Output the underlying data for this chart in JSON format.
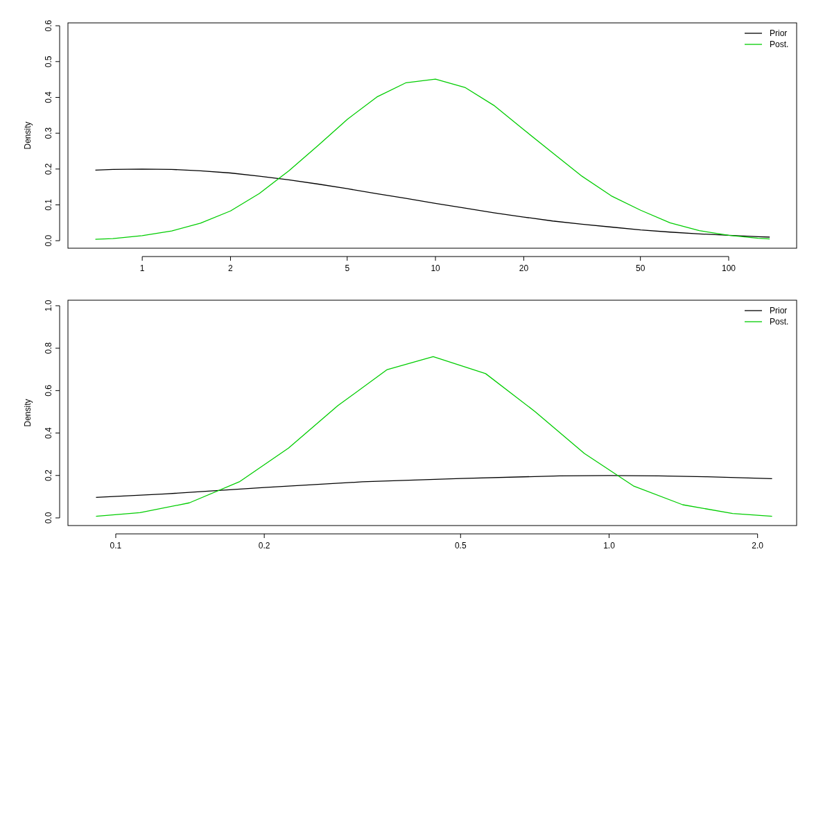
{
  "chart_data": [
    {
      "type": "line",
      "ylabel": "Density",
      "log": "x",
      "legend": "top right",
      "xlim": [
        0.558,
        170.5
      ],
      "ylim": [
        -0.021,
        0.608
      ],
      "xticks": [
        1,
        2,
        5,
        10,
        20,
        50,
        100
      ],
      "yticks": [
        {
          "value": 0,
          "label": "0.0"
        },
        {
          "value": 0.1,
          "label": "0.1"
        },
        {
          "value": 0.2,
          "label": "0.2"
        },
        {
          "value": 0.3,
          "label": "0.3"
        },
        {
          "value": 0.4,
          "label": "0.4"
        },
        {
          "value": 0.5,
          "label": "0.5"
        },
        {
          "value": 0.6,
          "label": "0.6"
        }
      ],
      "series": [
        {
          "name": "Prior",
          "color": "#000000",
          "x": [
            0.692,
            0.794,
            1,
            1.26,
            1.58,
            2.0,
            2.51,
            3.16,
            3.98,
            5.01,
            6.31,
            7.94,
            10,
            12.6,
            15.8,
            20,
            25.1,
            31.6,
            39.8,
            50.1,
            63.1,
            79.4,
            100,
            126,
            138
          ],
          "values": [
            0.197,
            0.199,
            0.2,
            0.199,
            0.195,
            0.189,
            0.18,
            0.17,
            0.158,
            0.145,
            0.131,
            0.118,
            0.104,
            0.091,
            0.078,
            0.066,
            0.055,
            0.046,
            0.038,
            0.03,
            0.024,
            0.019,
            0.015,
            0.011,
            0.01
          ]
        },
        {
          "name": "Post.",
          "color": "#00cd00",
          "x": [
            0.692,
            0.794,
            1,
            1.26,
            1.58,
            2.0,
            2.51,
            3.16,
            3.98,
            5.01,
            6.31,
            7.94,
            10,
            12.6,
            15.8,
            20,
            25.1,
            31.6,
            39.8,
            50.1,
            63.1,
            79.4,
            100,
            126,
            138
          ],
          "values": [
            0.004,
            0.006,
            0.014,
            0.027,
            0.049,
            0.083,
            0.132,
            0.195,
            0.266,
            0.339,
            0.401,
            0.441,
            0.451,
            0.428,
            0.378,
            0.31,
            0.245,
            0.18,
            0.125,
            0.085,
            0.05,
            0.028,
            0.015,
            0.007,
            0.005
          ]
        }
      ]
    },
    {
      "type": "line",
      "ylabel": "Density",
      "log": "x",
      "legend": "top right",
      "xlim": [
        0.08,
        2.4
      ],
      "ylim": [
        -0.036,
        1.026
      ],
      "xticks": [
        0.1,
        0.2,
        0.5,
        {
          "value": 1,
          "label": "1.0"
        },
        {
          "value": 2,
          "label": "2.0"
        }
      ],
      "yticks": [
        {
          "value": 0,
          "label": "0.0"
        },
        {
          "value": 0.2,
          "label": "0.2"
        },
        {
          "value": 0.4,
          "label": "0.4"
        },
        {
          "value": 0.6,
          "label": "0.6"
        },
        {
          "value": 0.8,
          "label": "0.8"
        },
        {
          "value": 1,
          "label": "1.0"
        }
      ],
      "series": [
        {
          "name": "Prior",
          "color": "#000000",
          "x": [
            0.0912,
            0.126,
            0.2,
            0.316,
            0.501,
            0.794,
            1,
            1.26,
            1.58,
            2.14
          ],
          "values": [
            0.097,
            0.113,
            0.143,
            0.17,
            0.186,
            0.198,
            0.2,
            0.198,
            0.194,
            0.185
          ]
        },
        {
          "name": "Post.",
          "color": "#00cd00",
          "x": [
            0.0912,
            0.112,
            0.141,
            0.178,
            0.224,
            0.282,
            0.355,
            0.44,
            0.562,
            0.708,
            0.891,
            1.12,
            1.41,
            1.78,
            2.14
          ],
          "values": [
            0.008,
            0.025,
            0.071,
            0.17,
            0.329,
            0.529,
            0.699,
            0.76,
            0.68,
            0.501,
            0.304,
            0.151,
            0.062,
            0.021,
            0.008
          ]
        }
      ]
    }
  ]
}
